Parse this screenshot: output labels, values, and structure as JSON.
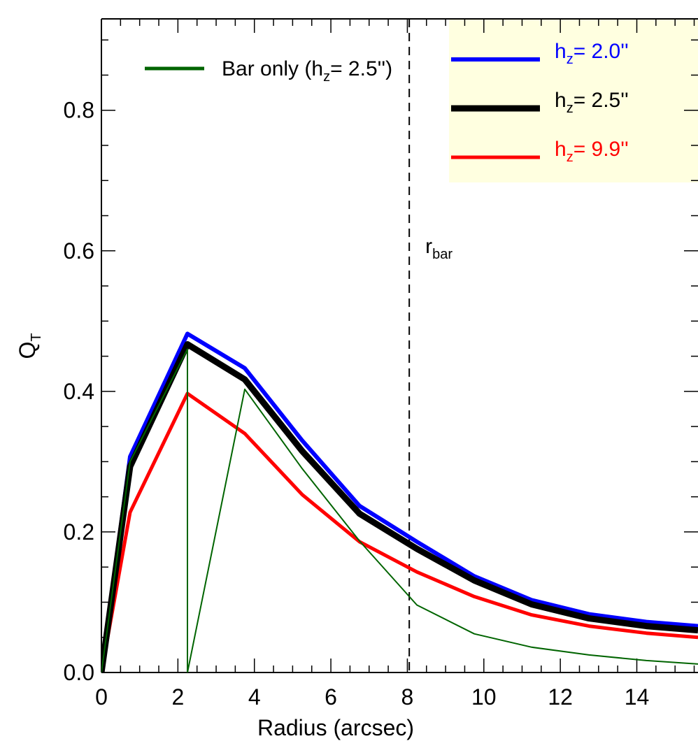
{
  "chart_data": {
    "type": "line",
    "xlabel": "Radius (arcsec)",
    "ylabel": {
      "main": "Q",
      "sub": "T"
    },
    "xlim": [
      0,
      15.6
    ],
    "ylim": [
      0,
      0.93
    ],
    "xticks": [
      0,
      2,
      4,
      6,
      8,
      10,
      12,
      14
    ],
    "xtick_labels": [
      "0",
      "2",
      "4",
      "6",
      "8",
      "10",
      "12",
      "14"
    ],
    "yticks": [
      0.0,
      0.2,
      0.4,
      0.6,
      0.8
    ],
    "ytick_labels": [
      "0.0",
      "0.2",
      "0.4",
      "0.6",
      "0.8"
    ],
    "grid": false,
    "vline": {
      "x": 8.05,
      "label": "r",
      "label_sub": "bar",
      "style": "dashed"
    },
    "series": [
      {
        "key": "hz_2_0",
        "legend": {
          "prefix": "h",
          "sub": "z",
          "suffix": "=   2.0''"
        },
        "color": "#0000ff",
        "width": 6,
        "x": [
          0,
          0.75,
          2.25,
          3.75,
          5.25,
          6.75,
          8.25,
          9.75,
          11.25,
          12.75,
          14.25,
          15.6
        ],
        "y": [
          0,
          0.307,
          0.482,
          0.433,
          0.33,
          0.237,
          0.186,
          0.137,
          0.103,
          0.083,
          0.072,
          0.066
        ]
      },
      {
        "key": "hz_2_5",
        "legend": {
          "prefix": "h",
          "sub": "z",
          "suffix": "=   2.5''"
        },
        "color": "#000000",
        "width": 9,
        "x": [
          0,
          0.75,
          2.25,
          3.75,
          5.25,
          6.75,
          8.25,
          9.75,
          11.25,
          12.75,
          14.25,
          15.6
        ],
        "y": [
          0,
          0.293,
          0.467,
          0.417,
          0.315,
          0.226,
          0.176,
          0.131,
          0.097,
          0.077,
          0.066,
          0.06
        ]
      },
      {
        "key": "hz_9_9",
        "legend": {
          "prefix": "h",
          "sub": "z",
          "suffix": "=   9.9''"
        },
        "color": "#ff0000",
        "width": 5,
        "x": [
          0,
          0.75,
          2.25,
          3.75,
          5.25,
          6.75,
          8.25,
          9.75,
          11.25,
          12.75,
          14.25,
          15.6
        ],
        "y": [
          0,
          0.228,
          0.397,
          0.34,
          0.253,
          0.186,
          0.143,
          0.108,
          0.082,
          0.066,
          0.056,
          0.05
        ]
      },
      {
        "key": "bar_only",
        "legend": {
          "prefix": "Bar only (h",
          "sub": "z",
          "suffix": "=   2.5'')"
        },
        "color": "#006400",
        "width": 2,
        "x": [
          0,
          0.75,
          2.25,
          2.25,
          3.75,
          5.25,
          6.75,
          8.25,
          9.75,
          11.25,
          12.75,
          14.25,
          15.6
        ],
        "y": [
          0,
          0.3,
          0.46,
          0,
          0.403,
          0.29,
          0.187,
          0.096,
          0.055,
          0.036,
          0.025,
          0.017,
          0.012
        ]
      }
    ],
    "legends": {
      "main_box_color": "#ffffe0",
      "main_box_items": [
        "hz_2_0",
        "hz_2_5",
        "hz_9_9"
      ],
      "main_box_label_colors": [
        "#0000ff",
        "#000000",
        "#ff0000"
      ],
      "main_box_placement": "top-right",
      "secondary_items": [
        "bar_only"
      ],
      "secondary_placement": "top-left"
    }
  }
}
